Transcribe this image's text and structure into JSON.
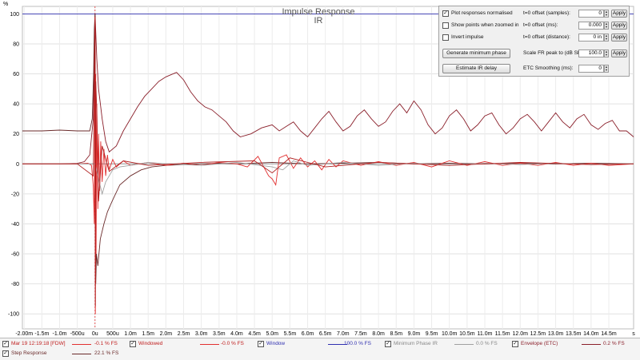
{
  "chart_data": {
    "type": "line",
    "title": "Impulse Response",
    "subtitle": "IR",
    "ylabel": "%",
    "ylim": [
      -110,
      105
    ],
    "xlim": [
      -2.05,
      15.2
    ],
    "y_ticks": [
      100,
      80,
      60,
      40,
      20,
      0,
      -20,
      -40,
      -60,
      -80,
      -100
    ],
    "y_tick_labels": [
      "100",
      "80",
      "60",
      "40",
      "20",
      "0",
      "-20",
      "-40",
      "-60",
      "-80",
      "-100"
    ],
    "x_ticks": [
      -2,
      -1.5,
      -1,
      -0.5,
      0,
      0.5,
      1,
      1.5,
      2,
      2.5,
      3,
      3.5,
      4,
      4.5,
      5,
      5.5,
      6,
      6.5,
      7,
      7.5,
      8,
      8.5,
      9,
      9.5,
      10,
      10.5,
      11,
      11.5,
      12,
      12.5,
      13,
      13.5,
      14,
      14.5
    ],
    "x_tick_labels": [
      "-2.00m",
      "-1.5m",
      "-1.0m",
      "-500u",
      "0u",
      "500u",
      "1.0m",
      "1.5m",
      "2.0m",
      "2.5m",
      "3.0m",
      "3.5m",
      "4.0m",
      "4.5m",
      "5.0m",
      "5.5m",
      "6.0m",
      "6.5m",
      "7.0m",
      "7.5m",
      "8.0m",
      "8.5m",
      "9.0m",
      "9.5m",
      "10.0m",
      "10.5m",
      "11.0m",
      "11.5m",
      "12.0m",
      "12.5m",
      "13.0m",
      "13.5m",
      "14.0m",
      "14.5m"
    ],
    "x_unit_label": "s",
    "grid": true,
    "series": [
      {
        "name": "Window",
        "color": "#3030b0",
        "x": [
          -2.05,
          15.2
        ],
        "y": [
          100,
          100
        ]
      },
      {
        "name": "Envelope (ETC)",
        "color": "#8a1f2a",
        "x": [
          -2.05,
          -1.5,
          -1.0,
          -0.5,
          -0.3,
          -0.15,
          -0.05,
          0.0,
          0.05,
          0.1,
          0.2,
          0.3,
          0.4,
          0.6,
          0.8,
          1.0,
          1.2,
          1.4,
          1.6,
          1.8,
          2.0,
          2.2,
          2.3,
          2.5,
          2.7,
          2.9,
          3.1,
          3.3,
          3.5,
          3.7,
          3.9,
          4.1,
          4.4,
          4.7,
          5.0,
          5.2,
          5.4,
          5.6,
          5.8,
          6.0,
          6.2,
          6.4,
          6.6,
          6.8,
          7.0,
          7.2,
          7.4,
          7.6,
          7.8,
          8.0,
          8.2,
          8.4,
          8.6,
          8.8,
          9.0,
          9.2,
          9.4,
          9.6,
          9.8,
          10.0,
          10.2,
          10.4,
          10.6,
          10.8,
          11.0,
          11.2,
          11.4,
          11.6,
          11.8,
          12.0,
          12.2,
          12.4,
          12.6,
          12.8,
          13.0,
          13.2,
          13.4,
          13.6,
          13.8,
          14.0,
          14.2,
          14.4,
          14.6,
          14.8,
          15.0,
          15.2
        ],
        "y": [
          0,
          0,
          0,
          0.3,
          1.5,
          6,
          30,
          100,
          70,
          50,
          30,
          15,
          8,
          12,
          22,
          30,
          38,
          45,
          50,
          55,
          58,
          60,
          61,
          56,
          48,
          42,
          38,
          36,
          32,
          28,
          22,
          18,
          20,
          24,
          26,
          22,
          25,
          28,
          22,
          18,
          24,
          30,
          35,
          28,
          22,
          25,
          32,
          36,
          30,
          25,
          28,
          35,
          40,
          34,
          42,
          36,
          26,
          20,
          24,
          32,
          36,
          30,
          22,
          26,
          32,
          34,
          26,
          20,
          24,
          30,
          33,
          28,
          22,
          28,
          34,
          28,
          24,
          30,
          33,
          26,
          23,
          27,
          29,
          22,
          22,
          18
        ]
      },
      {
        "name": "Step Response",
        "color": "#6a2a2a",
        "x": [
          -2.05,
          -1.5,
          -1.0,
          -0.5,
          -0.3,
          -0.15,
          -0.08,
          -0.04,
          -0.02,
          0.0,
          0.02,
          0.04,
          0.08,
          0.15,
          0.25,
          0.35,
          0.5,
          0.7,
          1.0,
          1.3,
          1.6,
          2.0,
          2.5,
          3.0,
          3.5,
          4.0,
          5.0,
          6.0,
          7.0,
          8.0,
          9.0,
          10.0,
          11.0,
          12.0,
          13.0,
          14.0,
          15.2
        ],
        "y": [
          22,
          22,
          22.5,
          22,
          22,
          22,
          30,
          60,
          90,
          100,
          -80,
          -60,
          -68,
          -50,
          -40,
          -32,
          -24,
          -14,
          -8,
          -4,
          -2,
          -1,
          -0.5,
          0,
          0.5,
          0,
          1,
          0,
          0.5,
          1,
          0,
          0.5,
          0,
          0.5,
          0,
          0.5,
          0
        ]
      },
      {
        "name": "Mar 19 12:19:18 [FDW]",
        "color": "#e23030",
        "x": [
          -2.05,
          -0.5,
          -0.2,
          -0.1,
          -0.05,
          -0.02,
          0.0,
          0.01,
          0.02,
          0.03,
          0.05,
          0.08,
          0.1,
          0.13,
          0.16,
          0.2,
          0.25,
          0.3,
          0.35,
          0.4,
          0.5,
          0.6,
          0.8,
          1.0,
          1.5,
          2.0,
          2.5,
          3.0,
          3.5,
          4.0,
          4.3,
          4.6,
          4.9,
          5.0,
          5.1,
          5.2,
          5.4,
          5.6,
          5.8,
          6.0,
          6.2,
          6.4,
          6.6,
          6.8,
          7.0,
          7.5,
          8.0,
          8.5,
          9.0,
          9.5,
          10.0,
          10.5,
          11.0,
          11.5,
          12.0,
          12.5,
          13.0,
          13.5,
          14.0,
          14.5,
          15.2
        ],
        "y": [
          0,
          0,
          0.5,
          -1,
          -15,
          -40,
          98,
          -100,
          60,
          -60,
          40,
          -30,
          20,
          -18,
          15,
          -12,
          10,
          -8,
          6,
          -4,
          3,
          -2,
          2,
          -1,
          1,
          -1,
          0.5,
          -1,
          1,
          0,
          -2,
          5,
          -8,
          -10,
          -14,
          4,
          6,
          -3,
          4,
          -2,
          2,
          -4,
          3,
          -2,
          2,
          -1,
          1.5,
          -1,
          1,
          -2,
          2,
          -1,
          1.5,
          -1,
          0.5,
          -1,
          1,
          -1,
          0.5,
          -1,
          0
        ]
      },
      {
        "name": "Minimum Phase IR",
        "color": "#a0a0a0",
        "x": [
          -2.05,
          0.0,
          0.1,
          0.2,
          0.3,
          0.4,
          0.5,
          0.7,
          1.0,
          1.5,
          2.0,
          3.0,
          4.0,
          5.0,
          5.3,
          5.6,
          6.0,
          7.0,
          8.0,
          9.0,
          10.0,
          11.0,
          12.0,
          13.0,
          14.0,
          15.2
        ],
        "y": [
          0,
          0,
          -10,
          -20,
          -12,
          -8,
          -4,
          -2,
          -1,
          1,
          0,
          -1,
          1,
          -2,
          -4,
          2,
          -1,
          1,
          -1,
          0.5,
          -1,
          0.5,
          -0.5,
          0.5,
          -0.5,
          0
        ]
      },
      {
        "name": "Windowed",
        "color": "#b02020",
        "x": [
          -2.05,
          -0.5,
          -0.05,
          0.0,
          0.01,
          0.02,
          0.05,
          0.1,
          0.2,
          0.4,
          0.8,
          1.5,
          3.0,
          4.5,
          5.0,
          5.5,
          6.5,
          8.0,
          10.0,
          12.0,
          14.0,
          15.2
        ],
        "y": [
          0,
          0,
          -8,
          96,
          -95,
          55,
          35,
          -25,
          12,
          -5,
          2,
          -1,
          1,
          2,
          -6,
          4,
          -2,
          1,
          -1,
          1,
          -0.5,
          0
        ]
      }
    ]
  },
  "controls": {
    "plot_normalised": {
      "label": "Plot responses normalised",
      "checked": true
    },
    "show_points": {
      "label": "Show points when zoomed in",
      "checked": false
    },
    "invert_impulse": {
      "label": "Invert impulse",
      "checked": false
    },
    "generate_min_phase_label": "Generate minimum phase",
    "estimate_ir_delay_label": "Estimate IR delay",
    "offset_samples": {
      "label": "t=0 offset (samples):",
      "value": "0"
    },
    "offset_ms": {
      "label": "t=0 offset (ms):",
      "value": "0.000"
    },
    "offset_distance": {
      "label": "t=0 offset (distance):",
      "value": "0 in"
    },
    "scale_fr": {
      "label": "Scale FR peak to (dB SPL):",
      "value": "100.0"
    },
    "etc_smoothing": {
      "label": "ETC Smoothing (ms):",
      "value": "0"
    },
    "apply_label": "Apply"
  },
  "legend": [
    {
      "name": "Mar 19 12:19:18 [FDW]",
      "value": "-0.1 % FS",
      "color": "#e23030",
      "checked": true
    },
    {
      "name": "Windowed",
      "value": "-0.0 % FS",
      "color": "#e23030",
      "checked": true
    },
    {
      "name": "Window",
      "value": "100.0 % FS",
      "color": "#3030b0",
      "checked": true
    },
    {
      "name": "Minimum Phase IR",
      "value": "0.0 % FS",
      "color": "#a0a0a0",
      "checked": true
    },
    {
      "name": "Envelope (ETC)",
      "value": "0.2 % FS",
      "color": "#8a1f2a",
      "checked": true
    },
    {
      "name": "Step Response",
      "value": "22.1 % FS",
      "color": "#6a2a2a",
      "checked": true
    }
  ]
}
